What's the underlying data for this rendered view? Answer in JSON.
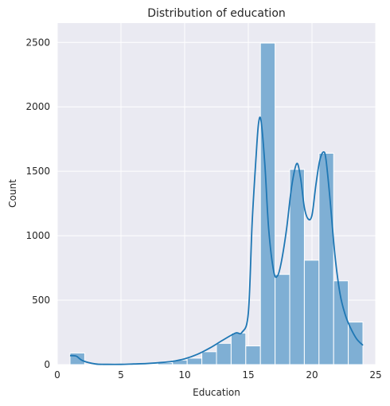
{
  "chart_data": {
    "type": "bar",
    "subtype": "histogram_with_kde",
    "title": "Distribution of education",
    "xlabel": "Education",
    "ylabel": "Count",
    "xlim": [
      0,
      25
    ],
    "ylim": [
      0,
      2650
    ],
    "xticks": [
      0,
      5,
      10,
      15,
      20,
      25
    ],
    "yticks": [
      0,
      500,
      1000,
      1500,
      2000,
      2500
    ],
    "grid": true,
    "bar_color": "#7fafd4",
    "line_color": "#1f77b4",
    "background_color": "#eaeaf2",
    "bins": [
      {
        "x0": 1.0,
        "x1": 2.15,
        "count": 90
      },
      {
        "x0": 2.15,
        "x1": 3.3,
        "count": 0
      },
      {
        "x0": 3.3,
        "x1": 4.45,
        "count": 0
      },
      {
        "x0": 4.45,
        "x1": 5.6,
        "count": 0
      },
      {
        "x0": 5.6,
        "x1": 6.75,
        "count": 3
      },
      {
        "x0": 6.75,
        "x1": 7.9,
        "count": 5
      },
      {
        "x0": 7.9,
        "x1": 9.05,
        "count": 15
      },
      {
        "x0": 9.05,
        "x1": 10.2,
        "count": 35
      },
      {
        "x0": 10.2,
        "x1": 11.35,
        "count": 50
      },
      {
        "x0": 11.35,
        "x1": 12.5,
        "count": 100
      },
      {
        "x0": 12.5,
        "x1": 13.65,
        "count": 165
      },
      {
        "x0": 13.65,
        "x1": 14.8,
        "count": 245
      },
      {
        "x0": 14.8,
        "x1": 15.95,
        "count": 145
      },
      {
        "x0": 15.95,
        "x1": 17.1,
        "count": 2495
      },
      {
        "x0": 17.1,
        "x1": 18.25,
        "count": 700
      },
      {
        "x0": 18.25,
        "x1": 19.4,
        "count": 1515
      },
      {
        "x0": 19.4,
        "x1": 20.55,
        "count": 810
      },
      {
        "x0": 20.55,
        "x1": 21.7,
        "count": 1640
      },
      {
        "x0": 21.7,
        "x1": 22.85,
        "count": 650
      },
      {
        "x0": 22.85,
        "x1": 24.0,
        "count": 330
      }
    ],
    "kde": {
      "x": [
        1,
        1.5,
        2,
        3,
        4,
        5,
        6,
        7,
        8,
        9,
        10,
        11,
        12,
        13,
        14,
        14.5,
        15,
        15.3,
        15.6,
        15.8,
        16,
        16.3,
        16.6,
        17,
        17.3,
        17.6,
        18,
        18.4,
        18.8,
        19.1,
        19.4,
        19.7,
        20,
        20.3,
        20.6,
        20.9,
        21.1,
        21.4,
        21.8,
        22.2,
        22.6,
        23,
        23.5,
        24
      ],
      "y": [
        70,
        65,
        30,
        5,
        2,
        2,
        5,
        8,
        15,
        25,
        45,
        80,
        130,
        190,
        245,
        250,
        400,
        1100,
        1600,
        1870,
        1890,
        1550,
        1050,
        720,
        690,
        800,
        1050,
        1380,
        1560,
        1450,
        1220,
        1130,
        1160,
        1390,
        1580,
        1650,
        1590,
        1300,
        850,
        550,
        390,
        290,
        200,
        150
      ]
    }
  }
}
